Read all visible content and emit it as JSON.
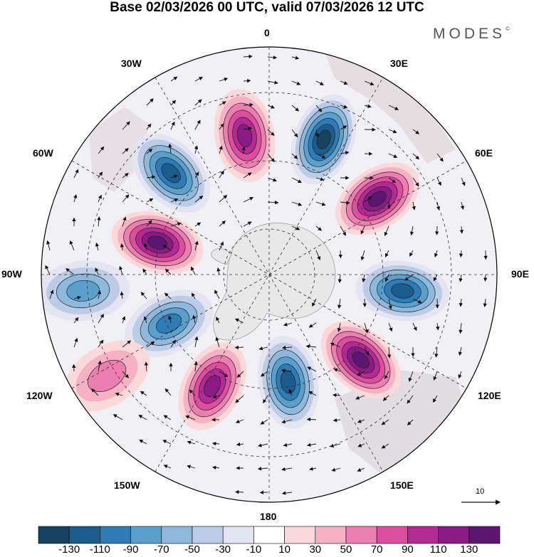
{
  "title": "Base 02/03/2026 00 UTC, valid 07/03/2026 12 UTC",
  "brand": "MODES",
  "brand_mark": "©",
  "longitude_labels": {
    "top": "0",
    "ne": "30E",
    "ene": "60E",
    "e": "90E",
    "ese": "120E",
    "se": "150E",
    "bottom": "180",
    "sw": "150W",
    "wsw": "120W",
    "w": "90W",
    "wnw": "60W",
    "nw": "30W"
  },
  "reference_vector": {
    "label": "10"
  },
  "colorbar": {
    "ticks": [
      "-130",
      "-110",
      "-90",
      "-70",
      "-50",
      "-30",
      "-10",
      "10",
      "30",
      "50",
      "70",
      "90",
      "110",
      "130"
    ],
    "colors": [
      "#16415f",
      "#1c5c8c",
      "#2e7bb6",
      "#5b9fcd",
      "#8fb8dd",
      "#bccbe6",
      "#e4e4f2",
      "#ffffff",
      "#fbd9da",
      "#f6b1c4",
      "#ec7fb0",
      "#dc4ea0",
      "#b42a93",
      "#8a1a84",
      "#5a1670"
    ]
  },
  "anomaly_centers": [
    {
      "name": "pos-1",
      "sign": "+",
      "angle_deg": 350,
      "radius": 0.62,
      "intensity": 110
    },
    {
      "name": "neg-1",
      "sign": "-",
      "angle_deg": 22,
      "radius": 0.64,
      "intensity": -120
    },
    {
      "name": "pos-2",
      "sign": "+",
      "angle_deg": 55,
      "radius": 0.58,
      "intensity": 135
    },
    {
      "name": "neg-2",
      "sign": "-",
      "angle_deg": 97,
      "radius": 0.59,
      "intensity": -100
    },
    {
      "name": "pos-3",
      "sign": "+",
      "angle_deg": 133,
      "radius": 0.55,
      "intensity": 130
    },
    {
      "name": "neg-3",
      "sign": "-",
      "angle_deg": 170,
      "radius": 0.48,
      "intensity": -100
    },
    {
      "name": "pos-4",
      "sign": "+",
      "angle_deg": 207,
      "radius": 0.55,
      "intensity": 100
    },
    {
      "name": "neg-4",
      "sign": "-",
      "angle_deg": 244,
      "radius": 0.49,
      "intensity": -90
    },
    {
      "name": "pos-5",
      "sign": "+",
      "angle_deg": 286,
      "radius": 0.51,
      "intensity": 140
    },
    {
      "name": "neg-5",
      "sign": "-",
      "angle_deg": 265,
      "radius": 0.82,
      "intensity": -75
    },
    {
      "name": "neg-6",
      "sign": "-",
      "angle_deg": 316,
      "radius": 0.62,
      "intensity": -100
    },
    {
      "name": "pos-6",
      "sign": "+",
      "angle_deg": 238,
      "radius": 0.84,
      "intensity": 45
    }
  ]
}
